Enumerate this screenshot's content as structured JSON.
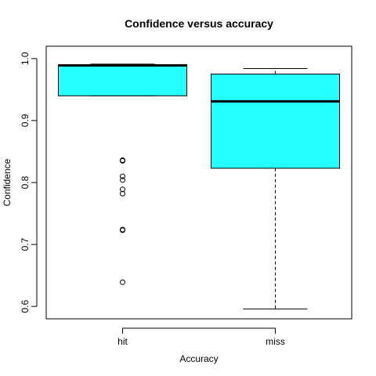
{
  "chart_data": {
    "type": "boxplot",
    "title": "Confidence versus accuracy",
    "xlabel": "Accuracy",
    "ylabel": "Confidence",
    "ylim": [
      0.58,
      1.02
    ],
    "yticks": [
      "0.6",
      "0.7",
      "0.8",
      "0.9",
      "1.0"
    ],
    "categories": [
      "hit",
      "miss"
    ],
    "boxes": [
      {
        "name": "hit",
        "whisker_low": 0.94,
        "q1": 0.94,
        "median": 0.989,
        "q3": 0.99,
        "whisker_high": 0.991,
        "outliers": [
          0.836,
          0.835,
          0.81,
          0.804,
          0.789,
          0.782,
          0.724,
          0.723,
          0.639
        ]
      },
      {
        "name": "miss",
        "whisker_low": 0.596,
        "q1": 0.823,
        "median": 0.931,
        "q3": 0.975,
        "whisker_high": 0.984,
        "outliers": []
      }
    ],
    "box_fill": "#26ffff",
    "grid": false,
    "legend": "none"
  }
}
